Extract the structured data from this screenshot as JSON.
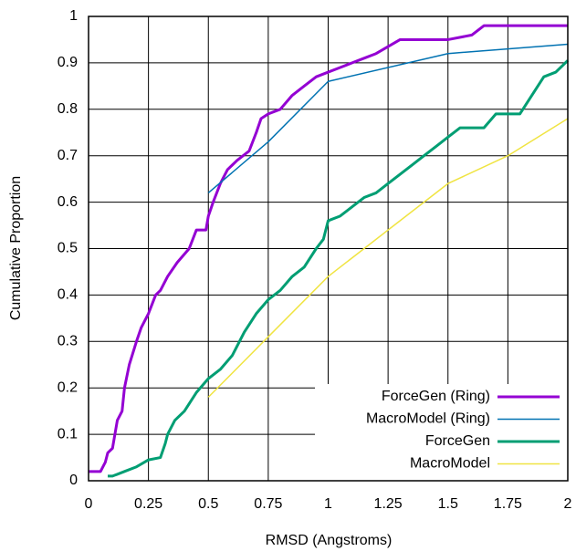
{
  "chart_data": {
    "type": "line",
    "xlabel": "RMSD (Angstroms)",
    "ylabel": "Cumulative Proportion",
    "xlim": [
      0,
      2
    ],
    "ylim": [
      0,
      1
    ],
    "xticks": [
      0,
      0.25,
      0.5,
      0.75,
      1,
      1.25,
      1.5,
      1.75,
      2
    ],
    "yticks": [
      0,
      0.1,
      0.2,
      0.3,
      0.4,
      0.5,
      0.6,
      0.7,
      0.8,
      0.9,
      1
    ],
    "grid": true,
    "legend": "lower right",
    "series": [
      {
        "name": "ForceGen (Ring)",
        "color": "#9400d3",
        "width": 3,
        "x": [
          0,
          0.05,
          0.07,
          0.08,
          0.1,
          0.11,
          0.12,
          0.14,
          0.15,
          0.17,
          0.2,
          0.22,
          0.25,
          0.28,
          0.3,
          0.33,
          0.37,
          0.42,
          0.45,
          0.49,
          0.5,
          0.52,
          0.55,
          0.58,
          0.62,
          0.67,
          0.7,
          0.72,
          0.75,
          0.8,
          0.85,
          0.9,
          0.95,
          1,
          1.05,
          1.1,
          1.15,
          1.2,
          1.3,
          1.5,
          1.6,
          1.65,
          2
        ],
        "values": [
          0.02,
          0.02,
          0.04,
          0.06,
          0.07,
          0.1,
          0.13,
          0.15,
          0.2,
          0.25,
          0.3,
          0.33,
          0.36,
          0.4,
          0.41,
          0.44,
          0.47,
          0.5,
          0.54,
          0.54,
          0.57,
          0.6,
          0.64,
          0.67,
          0.69,
          0.71,
          0.75,
          0.78,
          0.79,
          0.8,
          0.83,
          0.85,
          0.87,
          0.88,
          0.89,
          0.9,
          0.91,
          0.92,
          0.95,
          0.95,
          0.96,
          0.98,
          0.98
        ]
      },
      {
        "name": "MacroModel (Ring)",
        "color": "#0072b2",
        "width": 1.5,
        "x": [
          0.5,
          0.75,
          1,
          1.5,
          2
        ],
        "values": [
          0.62,
          0.73,
          0.86,
          0.92,
          0.94
        ]
      },
      {
        "name": "ForceGen",
        "color": "#009e73",
        "width": 3,
        "x": [
          0.08,
          0.1,
          0.15,
          0.2,
          0.25,
          0.3,
          0.32,
          0.33,
          0.36,
          0.4,
          0.45,
          0.5,
          0.55,
          0.6,
          0.65,
          0.7,
          0.75,
          0.8,
          0.85,
          0.9,
          0.95,
          0.98,
          1,
          1.05,
          1.1,
          1.15,
          1.2,
          1.25,
          1.3,
          1.35,
          1.4,
          1.45,
          1.5,
          1.55,
          1.65,
          1.7,
          1.8,
          1.85,
          1.9,
          1.95,
          2
        ],
        "values": [
          0.01,
          0.01,
          0.02,
          0.03,
          0.045,
          0.05,
          0.08,
          0.1,
          0.13,
          0.15,
          0.19,
          0.22,
          0.24,
          0.27,
          0.32,
          0.36,
          0.39,
          0.41,
          0.44,
          0.46,
          0.5,
          0.52,
          0.56,
          0.57,
          0.59,
          0.61,
          0.62,
          0.64,
          0.66,
          0.68,
          0.7,
          0.72,
          0.74,
          0.76,
          0.76,
          0.79,
          0.79,
          0.83,
          0.87,
          0.88,
          0.905
        ]
      },
      {
        "name": "MacroModel",
        "color": "#f0e442",
        "width": 1.5,
        "x": [
          0.5,
          0.75,
          1,
          1.25,
          1.5,
          1.75,
          2
        ],
        "values": [
          0.18,
          0.31,
          0.44,
          0.54,
          0.64,
          0.7,
          0.78
        ]
      }
    ]
  }
}
